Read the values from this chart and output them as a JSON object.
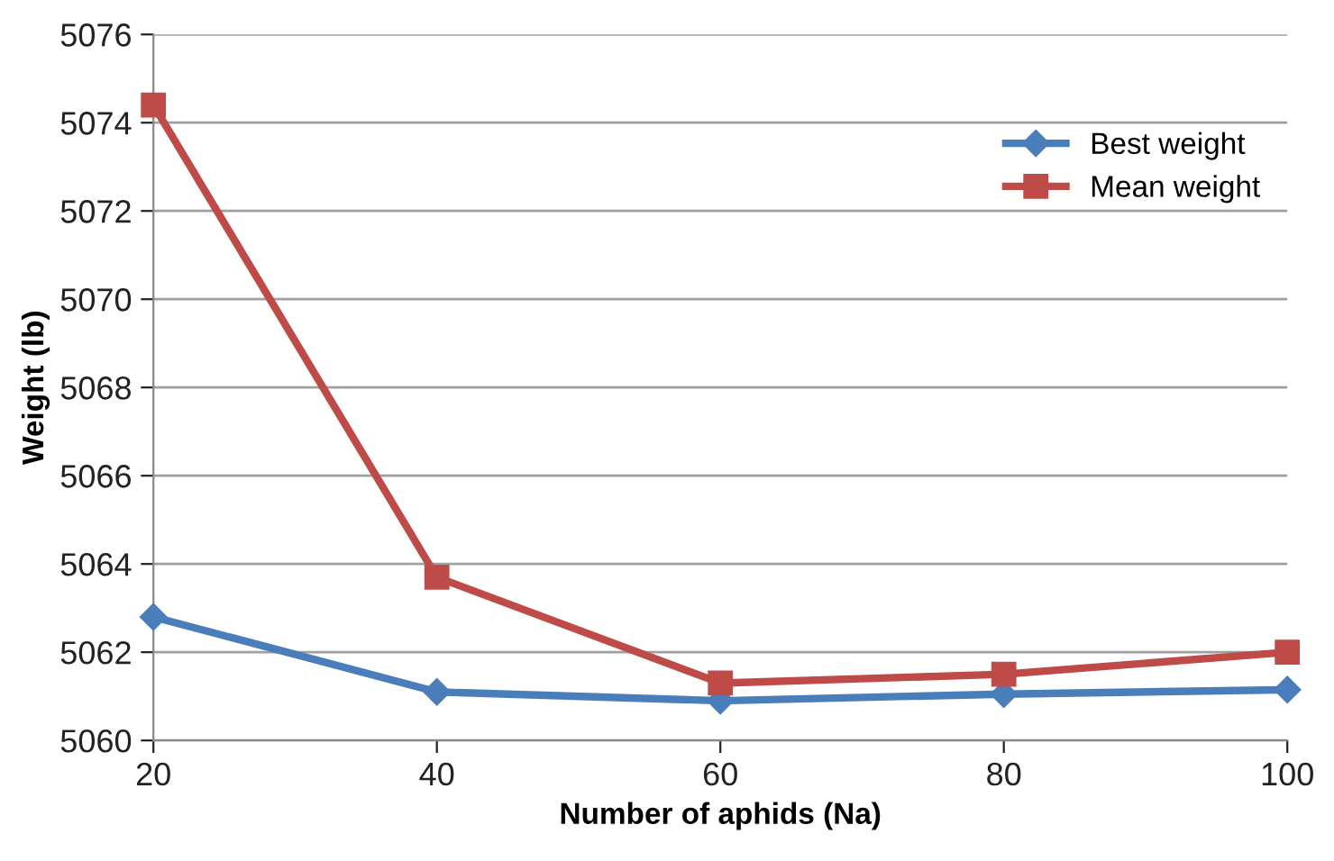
{
  "chart_data": {
    "type": "line",
    "xlabel": "Number of aphids (Na)",
    "ylabel": "Weight (lb)",
    "x": [
      20,
      40,
      60,
      80,
      100
    ],
    "series": [
      {
        "name": "Best weight",
        "color": "#4a7ebb",
        "values": [
          5062.8,
          5061.1,
          5060.9,
          5061.05,
          5061.15
        ],
        "marker": "diamond"
      },
      {
        "name": "Mean weight",
        "color": "#be4b48",
        "values": [
          5074.4,
          5063.7,
          5061.3,
          5061.5,
          5062.0
        ],
        "marker": "square"
      }
    ],
    "xlim": [
      20,
      100
    ],
    "xticks": [
      20,
      40,
      60,
      80,
      100
    ],
    "ylim": [
      5060,
      5076
    ],
    "yticks": [
      5060,
      5062,
      5064,
      5066,
      5068,
      5070,
      5072,
      5074,
      5076
    ],
    "grid": "y",
    "legend": "top right",
    "line_style": "solid"
  }
}
